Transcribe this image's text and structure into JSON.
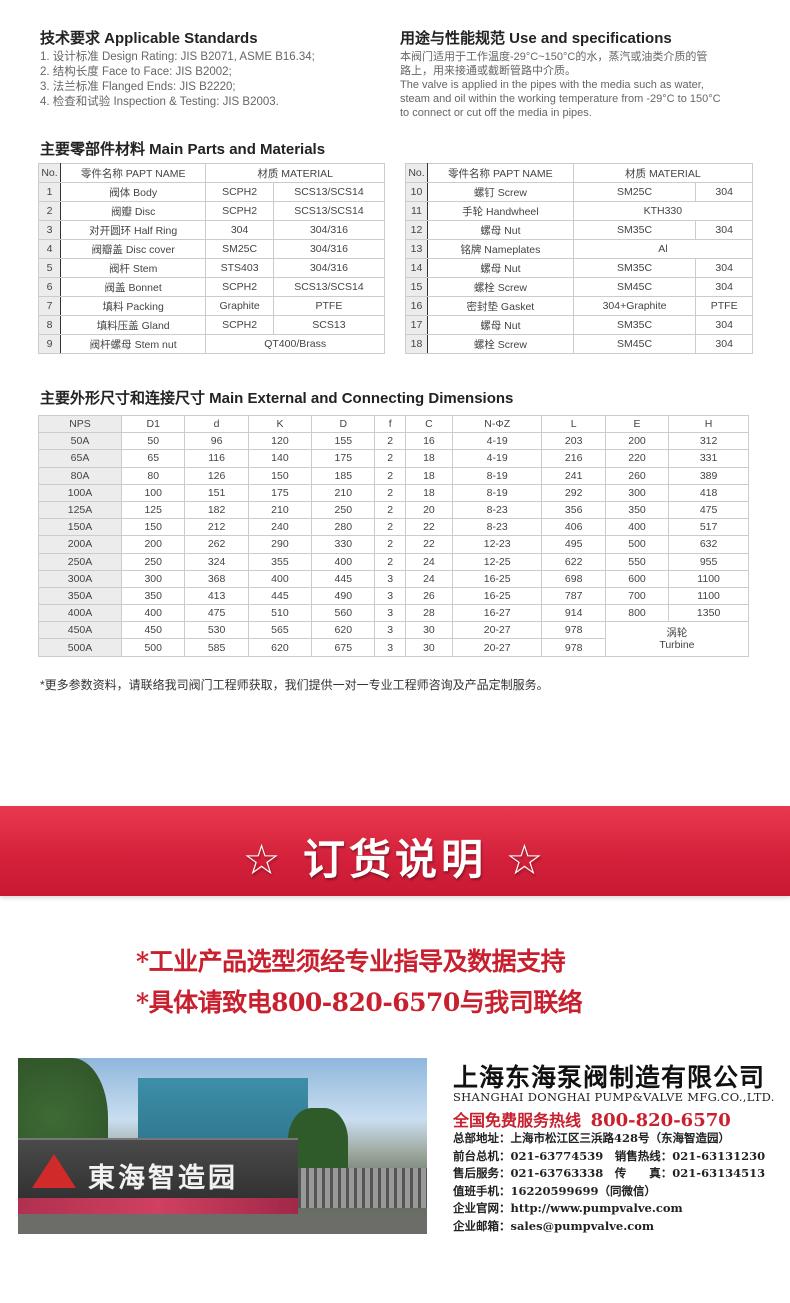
{
  "standards": {
    "title": "技术要求 Applicable Standards",
    "items": [
      "1. 设计标准 Design Rating: JIS B2071, ASME B16.34;",
      "2. 结构长度 Face to Face: JIS B2002;",
      "3. 法兰标准 Flanged Ends: JIS B2220;",
      "4. 检查和试验 Inspection & Testing: JIS B2003."
    ]
  },
  "use": {
    "title": "用途与性能规范 Use and specifications",
    "lines": [
      "本阀门适用于工作温度-29°C~150°C的水，蒸汽或油类介质的管",
      "路上，用来接通或截断管路中介质。",
      "The valve is applied in the pipes with the media such as water,",
      "steam and oil within the working temperature from -29°C to 150°C",
      "to connect or cut off the media in pipes."
    ]
  },
  "parts": {
    "title": "主要零部件材料 Main Parts and Materials",
    "headers": [
      "No.",
      "零件名称 PAPT NAME",
      "材质 MATERIAL"
    ],
    "rows_left": [
      [
        "1",
        "阀体 Body",
        "SCPH2",
        "SCS13/SCS14"
      ],
      [
        "2",
        "阀瓣 Disc",
        "SCPH2",
        "SCS13/SCS14"
      ],
      [
        "3",
        "对开圆环 Half Ring",
        "304",
        "304/316"
      ],
      [
        "4",
        "阀瓣盖 Disc cover",
        "SM25C",
        "304/316"
      ],
      [
        "5",
        "阀杆 Stem",
        "STS403",
        "304/316"
      ],
      [
        "6",
        "阀盖 Bonnet",
        "SCPH2",
        "SCS13/SCS14"
      ],
      [
        "7",
        "填料 Packing",
        "Graphite",
        "PTFE"
      ],
      [
        "8",
        "填料压盖 Gland",
        "SCPH2",
        "SCS13"
      ],
      [
        "9",
        "阀杆螺母 Stem nut",
        "QT400/Brass"
      ]
    ],
    "rows_right": [
      [
        "10",
        "螺钉 Screw",
        "SM25C",
        "304"
      ],
      [
        "11",
        "手轮 Handwheel",
        "KTH330"
      ],
      [
        "12",
        "螺母 Nut",
        "SM35C",
        "304"
      ],
      [
        "13",
        "铭牌 Nameplates",
        "Al"
      ],
      [
        "14",
        "螺母 Nut",
        "SM35C",
        "304"
      ],
      [
        "15",
        "螺栓 Screw",
        "SM45C",
        "304"
      ],
      [
        "16",
        "密封垫 Gasket",
        "304+Graphite",
        "PTFE"
      ],
      [
        "17",
        "螺母 Nut",
        "SM35C",
        "304"
      ],
      [
        "18",
        "螺栓 Screw",
        "SM45C",
        "304"
      ]
    ]
  },
  "dimensions": {
    "title": "主要外形尺寸和连接尺寸 Main External and Connecting Dimensions",
    "headers": [
      "NPS",
      "D1",
      "d",
      "K",
      "D",
      "f",
      "C",
      "N-ΦZ",
      "L",
      "E",
      "H"
    ],
    "rows": [
      [
        "50A",
        "50",
        "96",
        "120",
        "155",
        "2",
        "16",
        "4-19",
        "203",
        "200",
        "312"
      ],
      [
        "65A",
        "65",
        "116",
        "140",
        "175",
        "2",
        "18",
        "4-19",
        "216",
        "220",
        "331"
      ],
      [
        "80A",
        "80",
        "126",
        "150",
        "185",
        "2",
        "18",
        "8-19",
        "241",
        "260",
        "389"
      ],
      [
        "100A",
        "100",
        "151",
        "175",
        "210",
        "2",
        "18",
        "8-19",
        "292",
        "300",
        "418"
      ],
      [
        "125A",
        "125",
        "182",
        "210",
        "250",
        "2",
        "20",
        "8-23",
        "356",
        "350",
        "475"
      ],
      [
        "150A",
        "150",
        "212",
        "240",
        "280",
        "2",
        "22",
        "8-23",
        "406",
        "400",
        "517"
      ],
      [
        "200A",
        "200",
        "262",
        "290",
        "330",
        "2",
        "22",
        "12-23",
        "495",
        "500",
        "632"
      ],
      [
        "250A",
        "250",
        "324",
        "355",
        "400",
        "2",
        "24",
        "12-25",
        "622",
        "550",
        "955"
      ],
      [
        "300A",
        "300",
        "368",
        "400",
        "445",
        "3",
        "24",
        "16-25",
        "698",
        "600",
        "1100"
      ],
      [
        "350A",
        "350",
        "413",
        "445",
        "490",
        "3",
        "26",
        "16-25",
        "787",
        "700",
        "1100"
      ],
      [
        "400A",
        "400",
        "475",
        "510",
        "560",
        "3",
        "28",
        "16-27",
        "914",
        "800",
        "1350"
      ],
      [
        "450A",
        "450",
        "530",
        "565",
        "620",
        "3",
        "30",
        "20-27",
        "978"
      ],
      [
        "500A",
        "500",
        "585",
        "620",
        "675",
        "3",
        "30",
        "20-27",
        "978"
      ]
    ],
    "turbine_cn": "涡轮",
    "turbine_en": "Turbine"
  },
  "footnote": "*更多参数资料，请联络我司阀门工程师获取，我们提供一对一专业工程师咨询及产品定制服务。",
  "banner": {
    "title": "☆ 订货说明 ☆",
    "color": "#d4203a"
  },
  "notes": [
    "*工业产品选型须经专业指导及数据支持",
    "*具体请致电800-820-6570与我司联络"
  ],
  "photo": {
    "sign": "東海智造园"
  },
  "company": {
    "name_cn": "上海东海泵阀制造有限公司",
    "name_en": "SHANGHAI DONGHAI PUMP&VALVE MFG.CO.,LTD.",
    "hotline_label": "全国免费服务热线",
    "hotline": "800-820-6570",
    "lines": [
      "总部地址：上海市松江区三浜路428号（东海智造园）",
      "前台总机：021-63774539　销售热线：021-63131230",
      "售后服务：021-63763338　传　　真：021-63134513",
      "值班手机：16220599699（同微信）",
      "企业官网：http://www.pumpvalve.com",
      "企业邮箱：sales@pumpvalve.com"
    ]
  }
}
